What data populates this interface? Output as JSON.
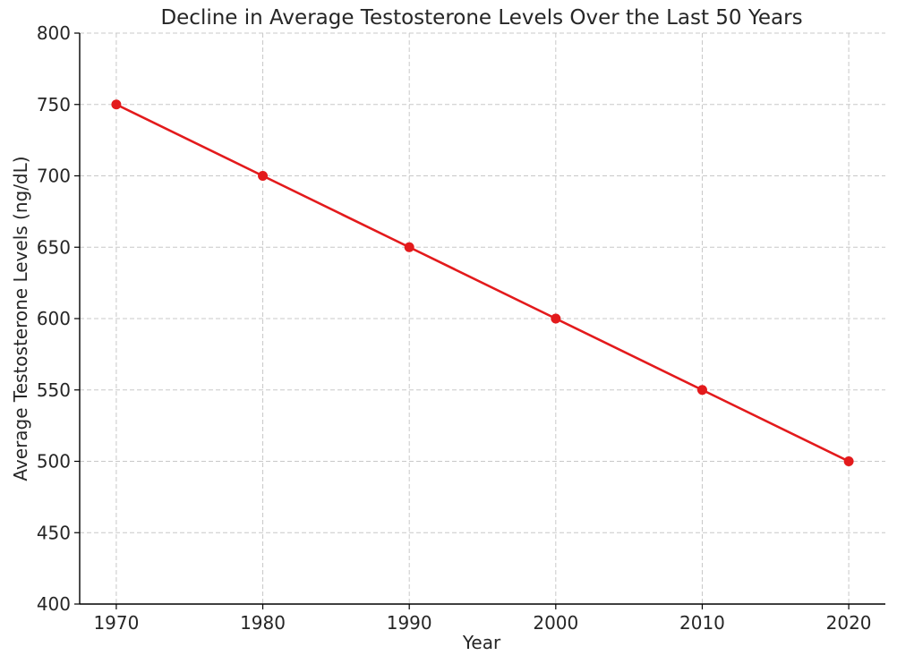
{
  "chart_data": {
    "type": "line",
    "title": "Decline in Average Testosterone Levels Over the Last 50 Years",
    "xlabel": "Year",
    "ylabel": "Average Testosterone Levels (ng/dL)",
    "x": [
      1970,
      1980,
      1990,
      2000,
      2010,
      2020
    ],
    "series": [
      {
        "values": [
          750,
          700,
          650,
          600,
          550,
          500
        ],
        "color": "#e31a1c",
        "marker": "circle"
      }
    ],
    "xlim": [
      1967.5,
      2022.5
    ],
    "ylim": [
      400,
      800
    ],
    "x_ticks": [
      1970,
      1980,
      1990,
      2000,
      2010,
      2020
    ],
    "y_ticks": [
      400,
      450,
      500,
      550,
      600,
      650,
      700,
      750,
      800
    ],
    "grid": true,
    "grid_style": "dashed",
    "legend": false
  }
}
